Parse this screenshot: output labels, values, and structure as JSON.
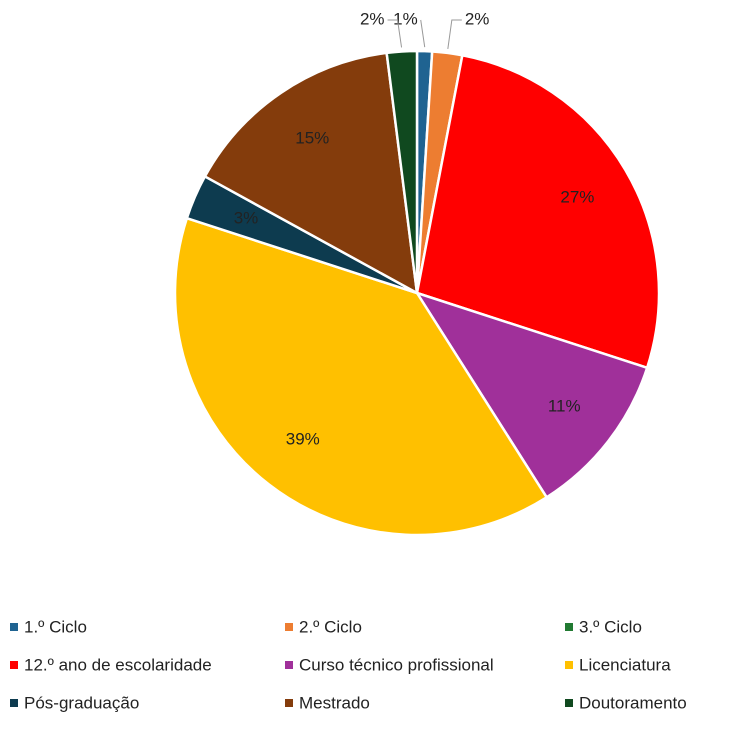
{
  "chart_data": {
    "type": "pie",
    "categories": [
      "1.º Ciclo",
      "2.º Ciclo",
      "3.º Ciclo",
      "12.º ano de escolaridade",
      "Curso técnico profissional",
      "Licenciatura",
      "Pós-graduação",
      "Mestrado",
      "Doutoramento"
    ],
    "values": [
      1,
      2,
      0,
      27,
      11,
      39,
      3,
      15,
      2
    ],
    "value_labels": [
      "1%",
      "2%",
      null,
      "27%",
      "11%",
      "39%",
      "3%",
      "15%",
      "2%"
    ],
    "colors": [
      "#1f6391",
      "#ed7d31",
      "#217a32",
      "#ff0000",
      "#a0309a",
      "#ffc000",
      "#0d3b4f",
      "#843c0c",
      "#10491f"
    ],
    "legend": "bottom"
  }
}
